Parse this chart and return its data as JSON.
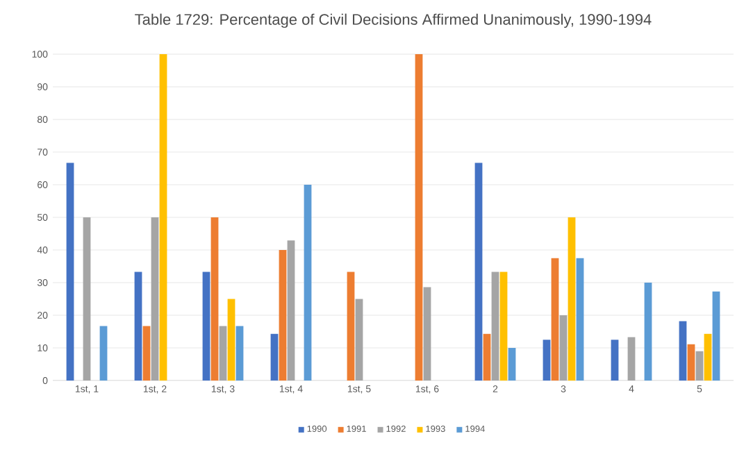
{
  "chart_data": {
    "type": "bar",
    "title": "Table 1729: Percentage of Civil Decisions Affirmed Unanimously, 1990-1994",
    "categories": [
      "1st, 1",
      "1st, 2",
      "1st, 3",
      "1st, 4",
      "1st, 5",
      "1st, 6",
      "2",
      "3",
      "4",
      "5"
    ],
    "series": [
      {
        "name": "1990",
        "color": "#4472c4",
        "values": [
          66.7,
          33.3,
          33.3,
          14.3,
          0,
          0,
          66.7,
          12.5,
          12.5,
          18.2
        ]
      },
      {
        "name": "1991",
        "color": "#ed7d31",
        "values": [
          0,
          16.7,
          50,
          40,
          33.3,
          100,
          14.3,
          37.5,
          0,
          11.1
        ]
      },
      {
        "name": "1992",
        "color": "#a5a5a5",
        "values": [
          50,
          50,
          16.7,
          42.9,
          25,
          28.6,
          33.3,
          20,
          13.3,
          9
        ]
      },
      {
        "name": "1993",
        "color": "#ffc000",
        "values": [
          0,
          100,
          25,
          0,
          0,
          0,
          33.3,
          50,
          0,
          14.3
        ]
      },
      {
        "name": "1994",
        "color": "#5b9bd5",
        "values": [
          16.7,
          0,
          16.7,
          60,
          0,
          0,
          10,
          37.5,
          30,
          27.3
        ]
      }
    ],
    "ylim": [
      0,
      100
    ],
    "yticks": [
      0,
      10,
      20,
      30,
      40,
      50,
      60,
      70,
      80,
      90,
      100
    ],
    "grid": "y",
    "legend": "bottom"
  }
}
